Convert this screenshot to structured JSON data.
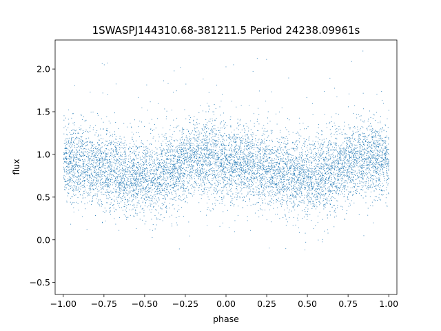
{
  "chart_data": {
    "type": "scatter",
    "title": "1SWASPJ144310.68-381211.5 Period 24238.09961s",
    "xlabel": "phase",
    "ylabel": "flux",
    "xlim": [
      -1.05,
      1.05
    ],
    "ylim": [
      -0.64,
      2.34
    ],
    "x_ticks": [
      -1.0,
      -0.75,
      -0.5,
      -0.25,
      0.0,
      0.25,
      0.5,
      0.75,
      1.0
    ],
    "x_tick_labels": [
      "−1.00",
      "−0.75",
      "−0.50",
      "−0.25",
      "0.00",
      "0.25",
      "0.50",
      "0.75",
      "1.00"
    ],
    "y_ticks": [
      -0.5,
      0.0,
      0.5,
      1.0,
      1.5,
      2.0
    ],
    "y_tick_labels": [
      "−0.5",
      "0.0",
      "0.5",
      "1.0",
      "1.5",
      "2.0"
    ],
    "grid": false,
    "legend": "none",
    "point_color": "#1f77b4",
    "phase_range": [
      -1.0,
      1.0
    ],
    "flux_profile": {
      "description_of_trend": "double-humped light curve folded over two cycles",
      "phase": [
        -1.0,
        -0.85,
        -0.7,
        -0.55,
        -0.45,
        -0.35,
        -0.2,
        -0.1,
        0.0,
        0.15,
        0.3,
        0.45,
        0.55,
        0.65,
        0.8,
        0.9,
        1.0
      ],
      "median_flux": [
        0.93,
        0.87,
        0.8,
        0.74,
        0.73,
        0.82,
        0.95,
        0.97,
        0.93,
        0.87,
        0.8,
        0.74,
        0.73,
        0.82,
        0.95,
        0.97,
        0.93
      ],
      "scatter_sd": 0.22,
      "max_flux": 2.22,
      "min_flux": -0.52
    }
  }
}
